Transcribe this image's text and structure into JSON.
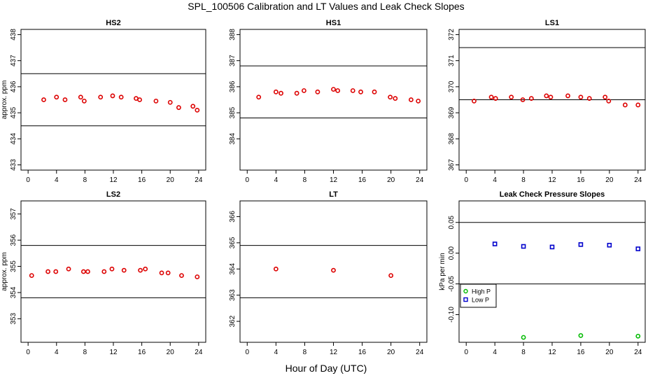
{
  "title": "SPL_100506  Calibration and LT Values and Leak Check Slopes",
  "shared_xlabel": "Hour of Day (UTC)",
  "colors": {
    "red_points": "#dd0000",
    "blue_points": "#0000cc",
    "green_points": "#00bb00",
    "lines": "#000000"
  },
  "chart_data": [
    {
      "type": "scatter",
      "title": "HS2",
      "ylabel": "approx. ppm",
      "xlim": [
        -1,
        25
      ],
      "ylim": [
        432.8,
        438.2
      ],
      "xticks": [
        0,
        4,
        8,
        12,
        16,
        20,
        24
      ],
      "yticks": [
        433,
        434,
        435,
        436,
        437,
        438
      ],
      "hlines": [
        434.5,
        436.5
      ],
      "series": [
        {
          "color": "red",
          "marker": "circle",
          "x": [
            2.2,
            4,
            5.2,
            7.4,
            7.9,
            10.2,
            11.9,
            13.1,
            15.2,
            15.7,
            18,
            20,
            21.2,
            23.2,
            23.8
          ],
          "y": [
            435.5,
            435.6,
            435.5,
            435.6,
            435.45,
            435.6,
            435.65,
            435.6,
            435.55,
            435.5,
            435.45,
            435.4,
            435.2,
            435.25,
            435.1
          ]
        }
      ]
    },
    {
      "type": "scatter",
      "title": "HS1",
      "ylabel": "",
      "xlim": [
        -1,
        25
      ],
      "ylim": [
        382.8,
        388.2
      ],
      "xticks": [
        0,
        4,
        8,
        12,
        16,
        20,
        24
      ],
      "yticks": [
        384,
        385,
        386,
        387,
        388
      ],
      "hlines": [
        384.8,
        386.8
      ],
      "series": [
        {
          "color": "red",
          "marker": "circle",
          "x": [
            1.6,
            4,
            4.7,
            6.9,
            7.9,
            9.8,
            12,
            12.6,
            14.7,
            15.8,
            17.7,
            19.9,
            20.6,
            22.8,
            23.8
          ],
          "y": [
            385.6,
            385.8,
            385.75,
            385.75,
            385.85,
            385.8,
            385.9,
            385.85,
            385.85,
            385.8,
            385.8,
            385.6,
            385.55,
            385.5,
            385.45
          ]
        }
      ]
    },
    {
      "type": "scatter",
      "title": "LS1",
      "ylabel": "",
      "xlim": [
        -1,
        25
      ],
      "ylim": [
        366.8,
        372.2
      ],
      "xticks": [
        0,
        4,
        8,
        12,
        16,
        20,
        24
      ],
      "yticks": [
        367,
        368,
        369,
        370,
        371,
        372
      ],
      "hlines": [
        369.5,
        371.5
      ],
      "series": [
        {
          "color": "red",
          "marker": "circle",
          "x": [
            1.1,
            3.5,
            4.1,
            6.3,
            7.9,
            9.1,
            11.2,
            11.8,
            14.2,
            16,
            17.2,
            19.4,
            19.9,
            22.2,
            24
          ],
          "y": [
            369.45,
            369.6,
            369.55,
            369.6,
            369.5,
            369.55,
            369.65,
            369.6,
            369.65,
            369.6,
            369.55,
            369.6,
            369.45,
            369.3,
            369.3
          ]
        }
      ]
    },
    {
      "type": "scatter",
      "title": "LS2",
      "ylabel": "approx. ppm",
      "xlim": [
        -1,
        25
      ],
      "ylim": [
        352.1,
        357.5
      ],
      "xticks": [
        0,
        4,
        8,
        12,
        16,
        20,
        24
      ],
      "yticks": [
        353,
        354,
        355,
        356,
        357
      ],
      "hlines": [
        353.8,
        355.8
      ],
      "series": [
        {
          "color": "red",
          "marker": "circle",
          "x": [
            0.5,
            2.8,
            3.9,
            5.7,
            7.8,
            8.4,
            10.7,
            11.8,
            13.5,
            15.8,
            16.5,
            18.8,
            19.7,
            21.6,
            23.8
          ],
          "y": [
            354.65,
            354.8,
            354.8,
            354.9,
            354.8,
            354.8,
            354.8,
            354.9,
            354.85,
            354.85,
            354.9,
            354.75,
            354.75,
            354.65,
            354.6
          ]
        }
      ]
    },
    {
      "type": "scatter",
      "title": "LT",
      "ylabel": "",
      "xlim": [
        -1,
        25
      ],
      "ylim": [
        361.2,
        366.6
      ],
      "xticks": [
        0,
        4,
        8,
        12,
        16,
        20,
        24
      ],
      "yticks": [
        362,
        363,
        364,
        365,
        366
      ],
      "hlines": [
        362.9,
        364.9
      ],
      "series": [
        {
          "color": "red",
          "marker": "circle",
          "x": [
            4,
            12,
            20
          ],
          "y": [
            364.0,
            363.95,
            363.75
          ]
        }
      ]
    },
    {
      "type": "scatter",
      "title": "Leak Check Pressure Slopes",
      "ylabel": "kPa per min",
      "xlim": [
        -1,
        25
      ],
      "ylim": [
        -0.145,
        0.085
      ],
      "xticks": [
        0,
        4,
        8,
        12,
        16,
        20,
        24
      ],
      "yticks": [
        -0.1,
        -0.05,
        0.0,
        0.05
      ],
      "ytick_labels": [
        "-0.10",
        "-0.05",
        "0.00",
        "0.05"
      ],
      "hlines": [
        -0.05,
        0.05
      ],
      "legend": {
        "position": "left",
        "entries": [
          {
            "label": "High P",
            "color": "green",
            "marker": "circle"
          },
          {
            "label": "Low P",
            "color": "blue",
            "marker": "square"
          }
        ]
      },
      "series": [
        {
          "name": "High P",
          "color": "green",
          "marker": "circle",
          "x": [
            8,
            16,
            24
          ],
          "y": [
            -0.137,
            -0.134,
            -0.135
          ]
        },
        {
          "name": "Low P",
          "color": "blue",
          "marker": "square",
          "x": [
            4,
            8,
            12,
            16,
            20,
            24
          ],
          "y": [
            0.015,
            0.011,
            0.01,
            0.014,
            0.013,
            0.007
          ]
        }
      ]
    }
  ]
}
